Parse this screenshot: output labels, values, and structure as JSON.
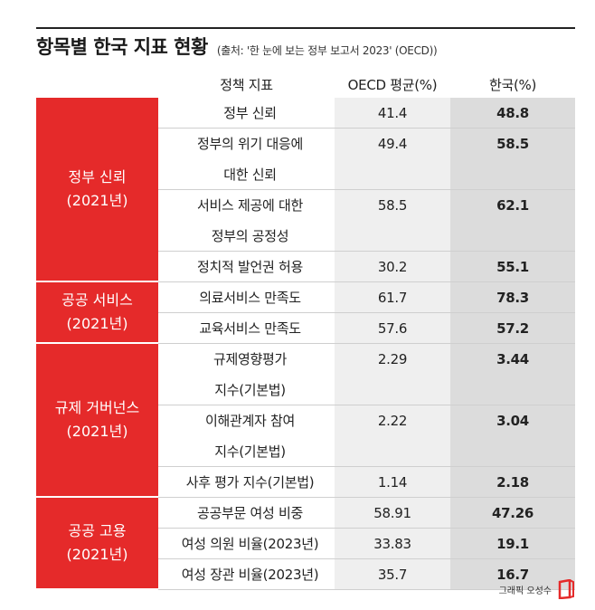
{
  "title": "항목별 한국 지표 현황",
  "source": "(출처: '한 눈에 보는 정부 보고서 2023' (OECD))",
  "columns": {
    "indicator": "정책 지표",
    "oecd": "OECD 평균(%)",
    "korea": "한국(%)"
  },
  "groups": [
    {
      "lines": [
        "정부 신뢰",
        "(2021년)"
      ]
    },
    {
      "lines": [
        "공공 서비스",
        "(2021년)"
      ]
    },
    {
      "lines": [
        "규제 거버넌스",
        "(2021년)"
      ]
    },
    {
      "lines": [
        "공공 고용",
        "(2021년)"
      ]
    }
  ],
  "rows": [
    {
      "label": [
        "정부 신뢰"
      ],
      "oecd": "41.4",
      "korea": "48.8"
    },
    {
      "label": [
        "정부의 위기 대응에",
        "대한 신뢰"
      ],
      "oecd": "49.4",
      "korea": "58.5"
    },
    {
      "label": [
        "서비스 제공에 대한",
        "정부의 공정성"
      ],
      "oecd": "58.5",
      "korea": "62.1"
    },
    {
      "label": [
        "정치적 발언권 허용"
      ],
      "oecd": "30.2",
      "korea": "55.1"
    },
    {
      "label": [
        "의료서비스 만족도"
      ],
      "oecd": "61.7",
      "korea": "78.3"
    },
    {
      "label": [
        "교육서비스 만족도"
      ],
      "oecd": "57.6",
      "korea": "57.2"
    },
    {
      "label": [
        "규제영향평가",
        "지수(기본법)"
      ],
      "oecd": "2.29",
      "korea": "3.44"
    },
    {
      "label": [
        "이해관계자 참여",
        "지수(기본법)"
      ],
      "oecd": "2.22",
      "korea": "3.04"
    },
    {
      "label": [
        "사후 평가 지수(기본법)"
      ],
      "oecd": "1.14",
      "korea": "2.18"
    },
    {
      "label": [
        "공공부문 여성 비중"
      ],
      "oecd": "58.91",
      "korea": "47.26"
    },
    {
      "label": [
        "여성 의원 비율(2023년)"
      ],
      "oecd": "33.83",
      "korea": "19.1"
    },
    {
      "label": [
        "여성 장관 비율(2023년)"
      ],
      "oecd": "35.7",
      "korea": "16.7"
    }
  ],
  "credit": "그래픽 오성수",
  "colors": {
    "accent": "#e52a2a",
    "oecd_col": "#efefef",
    "korea_col": "#dcdcdc"
  }
}
